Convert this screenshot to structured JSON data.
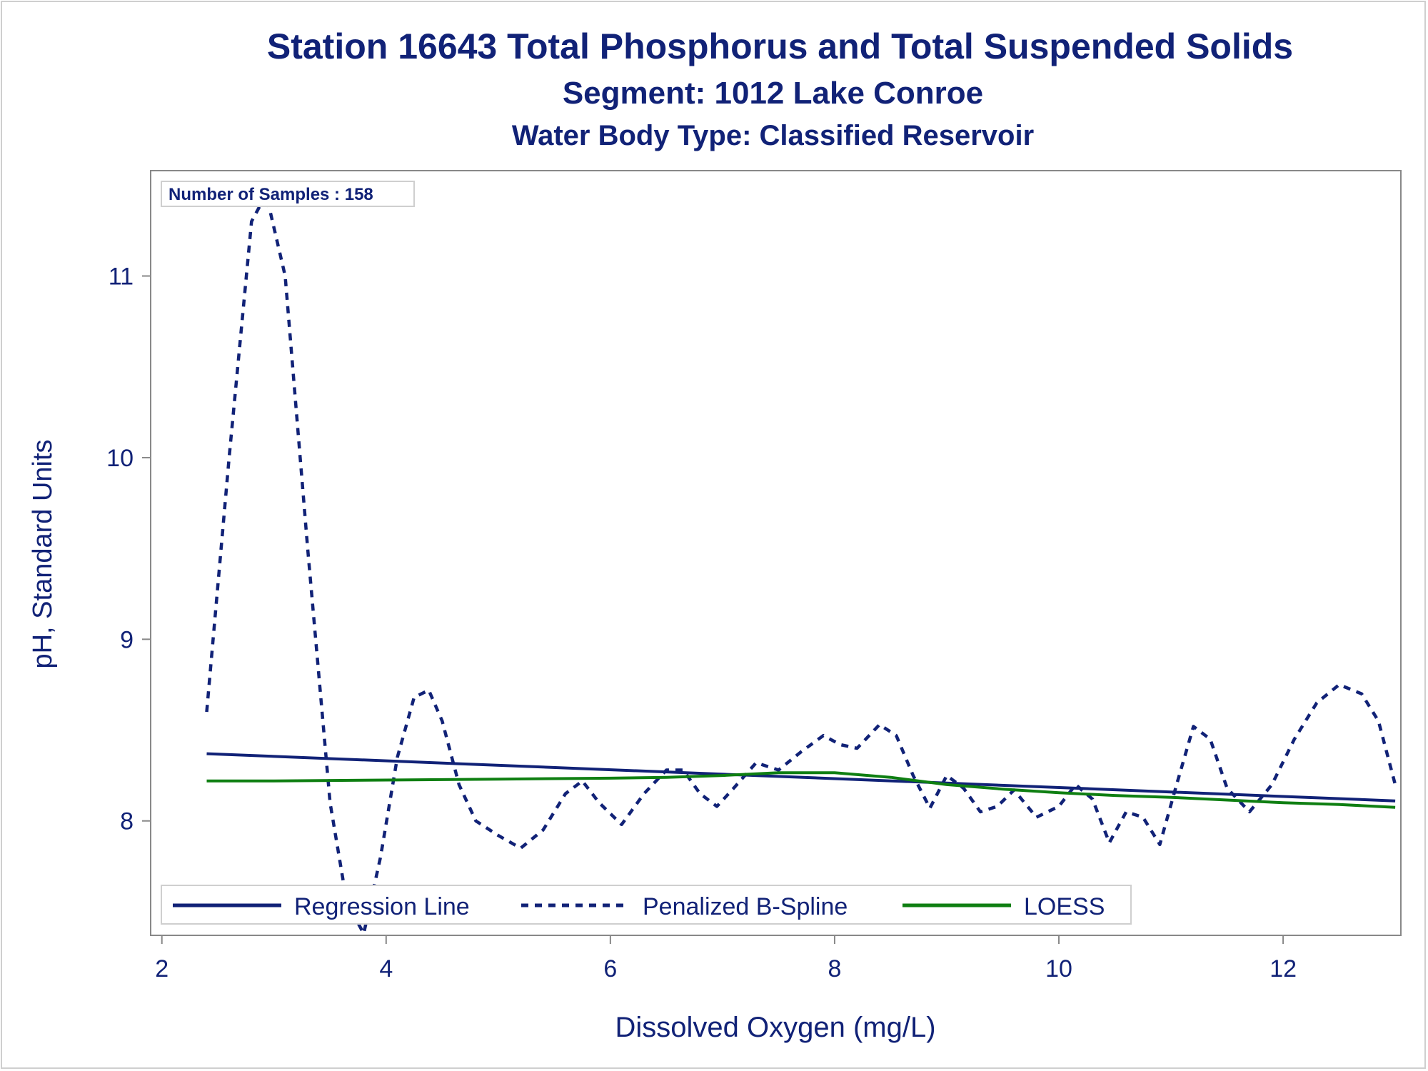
{
  "chart_data": {
    "type": "line",
    "title": "Station 16643  Total Phosphorus and Total Suspended Solids",
    "subtitle": "Segment: 1012  Lake Conroe",
    "subtitle2": "Water Body Type: Classified Reservoir",
    "xlabel": "Dissolved Oxygen (mg/L)",
    "ylabel": "pH, Standard Units",
    "xlim": [
      1.9,
      13.05
    ],
    "ylim": [
      7.37,
      11.58
    ],
    "xticks": [
      2,
      4,
      6,
      8,
      10,
      12
    ],
    "yticks": [
      8,
      9,
      10,
      11
    ],
    "grid": false,
    "legend_position": "bottom-inside",
    "annotation": "Number of Samples : 158",
    "series": [
      {
        "name": "Regression Line",
        "style": "solid",
        "color": "#112277",
        "x": [
          2.4,
          13.0
        ],
        "y": [
          8.37,
          8.11
        ]
      },
      {
        "name": "Penalized B-Spline",
        "style": "dashed",
        "color": "#112277",
        "x": [
          2.4,
          2.6,
          2.8,
          2.93,
          3.1,
          3.3,
          3.5,
          3.65,
          3.8,
          3.95,
          4.1,
          4.25,
          4.38,
          4.5,
          4.65,
          4.8,
          5.0,
          5.2,
          5.4,
          5.6,
          5.75,
          5.9,
          6.1,
          6.3,
          6.5,
          6.65,
          6.8,
          6.95,
          7.1,
          7.3,
          7.5,
          7.7,
          7.9,
          8.05,
          8.2,
          8.4,
          8.55,
          8.7,
          8.85,
          9.0,
          9.15,
          9.3,
          9.45,
          9.6,
          9.8,
          10.0,
          10.15,
          10.3,
          10.45,
          10.6,
          10.75,
          10.9,
          11.05,
          11.2,
          11.35,
          11.5,
          11.7,
          11.9,
          12.1,
          12.3,
          12.5,
          12.7,
          12.85,
          13.0
        ],
        "y": [
          8.6,
          10.0,
          11.3,
          11.45,
          11.0,
          9.5,
          8.1,
          7.55,
          7.38,
          7.8,
          8.35,
          8.68,
          8.72,
          8.55,
          8.2,
          8.0,
          7.92,
          7.85,
          7.95,
          8.15,
          8.22,
          8.1,
          7.98,
          8.15,
          8.28,
          8.28,
          8.15,
          8.08,
          8.18,
          8.32,
          8.28,
          8.38,
          8.47,
          8.42,
          8.4,
          8.53,
          8.47,
          8.25,
          8.07,
          8.25,
          8.18,
          8.05,
          8.08,
          8.17,
          8.02,
          8.08,
          8.2,
          8.12,
          7.88,
          8.05,
          8.02,
          7.87,
          8.2,
          8.52,
          8.45,
          8.18,
          8.05,
          8.2,
          8.45,
          8.65,
          8.75,
          8.7,
          8.55,
          8.2
        ]
      },
      {
        "name": "LOESS",
        "style": "solid",
        "color": "#0f7f12",
        "x": [
          2.4,
          3.0,
          4.0,
          5.0,
          6.0,
          6.5,
          7.0,
          7.5,
          8.0,
          8.5,
          9.0,
          9.5,
          10.0,
          10.5,
          11.0,
          11.5,
          12.0,
          12.5,
          13.0
        ],
        "y": [
          8.22,
          8.22,
          8.225,
          8.23,
          8.235,
          8.24,
          8.25,
          8.265,
          8.265,
          8.24,
          8.2,
          8.175,
          8.155,
          8.14,
          8.13,
          8.115,
          8.1,
          8.09,
          8.075
        ]
      }
    ]
  }
}
